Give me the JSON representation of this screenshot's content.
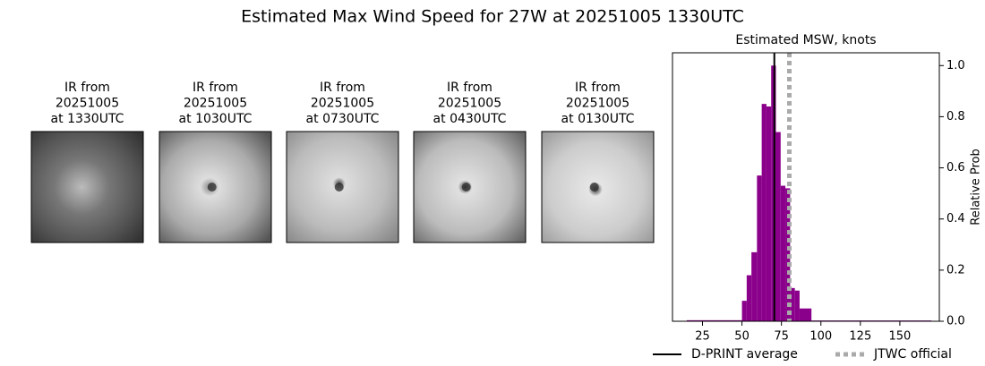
{
  "title": "Estimated Max Wind Speed for 27W at 20251005 1330UTC",
  "panels": [
    {
      "lines": [
        "IR from",
        "20251005",
        "at 1330UTC"
      ]
    },
    {
      "lines": [
        "IR from",
        "20251005",
        "at 1030UTC"
      ]
    },
    {
      "lines": [
        "IR from",
        "20251005",
        "at 0730UTC"
      ]
    },
    {
      "lines": [
        "IR from",
        "20251005",
        "at 0430UTC"
      ]
    },
    {
      "lines": [
        "IR from",
        "20251005",
        "at 0130UTC"
      ]
    }
  ],
  "chart_data": {
    "type": "histogram",
    "title": "Estimated MSW, knots",
    "ylabel": "Relative Prob",
    "bins": [
      15,
      50,
      53,
      56,
      59.5,
      62.5,
      65.5,
      68.5,
      71.5,
      74.5,
      77.5,
      80.5,
      83.5,
      86.5,
      94,
      170
    ],
    "counts": [
      0.004,
      0.08,
      0.18,
      0.27,
      0.57,
      0.85,
      0.84,
      1.0,
      0.74,
      0.53,
      0.52,
      0.13,
      0.12,
      0.05,
      0.003
    ],
    "color": "#8b008b",
    "xlim": [
      6,
      175
    ],
    "ylim": [
      0,
      1.05
    ],
    "xticks": [
      25,
      50,
      75,
      100,
      125,
      150
    ],
    "yticks": [
      {
        "value": 0,
        "label": "0.0"
      },
      0.2,
      0.4,
      0.6,
      0.8,
      {
        "value": 1,
        "label": "1.0"
      }
    ],
    "yaxis_side": "right",
    "reference_lines": [
      {
        "name": "D-PRINT average",
        "x": 70.5,
        "color": "#000000",
        "style": "solid"
      },
      {
        "name": "JTWC official",
        "x": 80,
        "color": "#aaaaaa",
        "style": "dotted"
      }
    ]
  }
}
